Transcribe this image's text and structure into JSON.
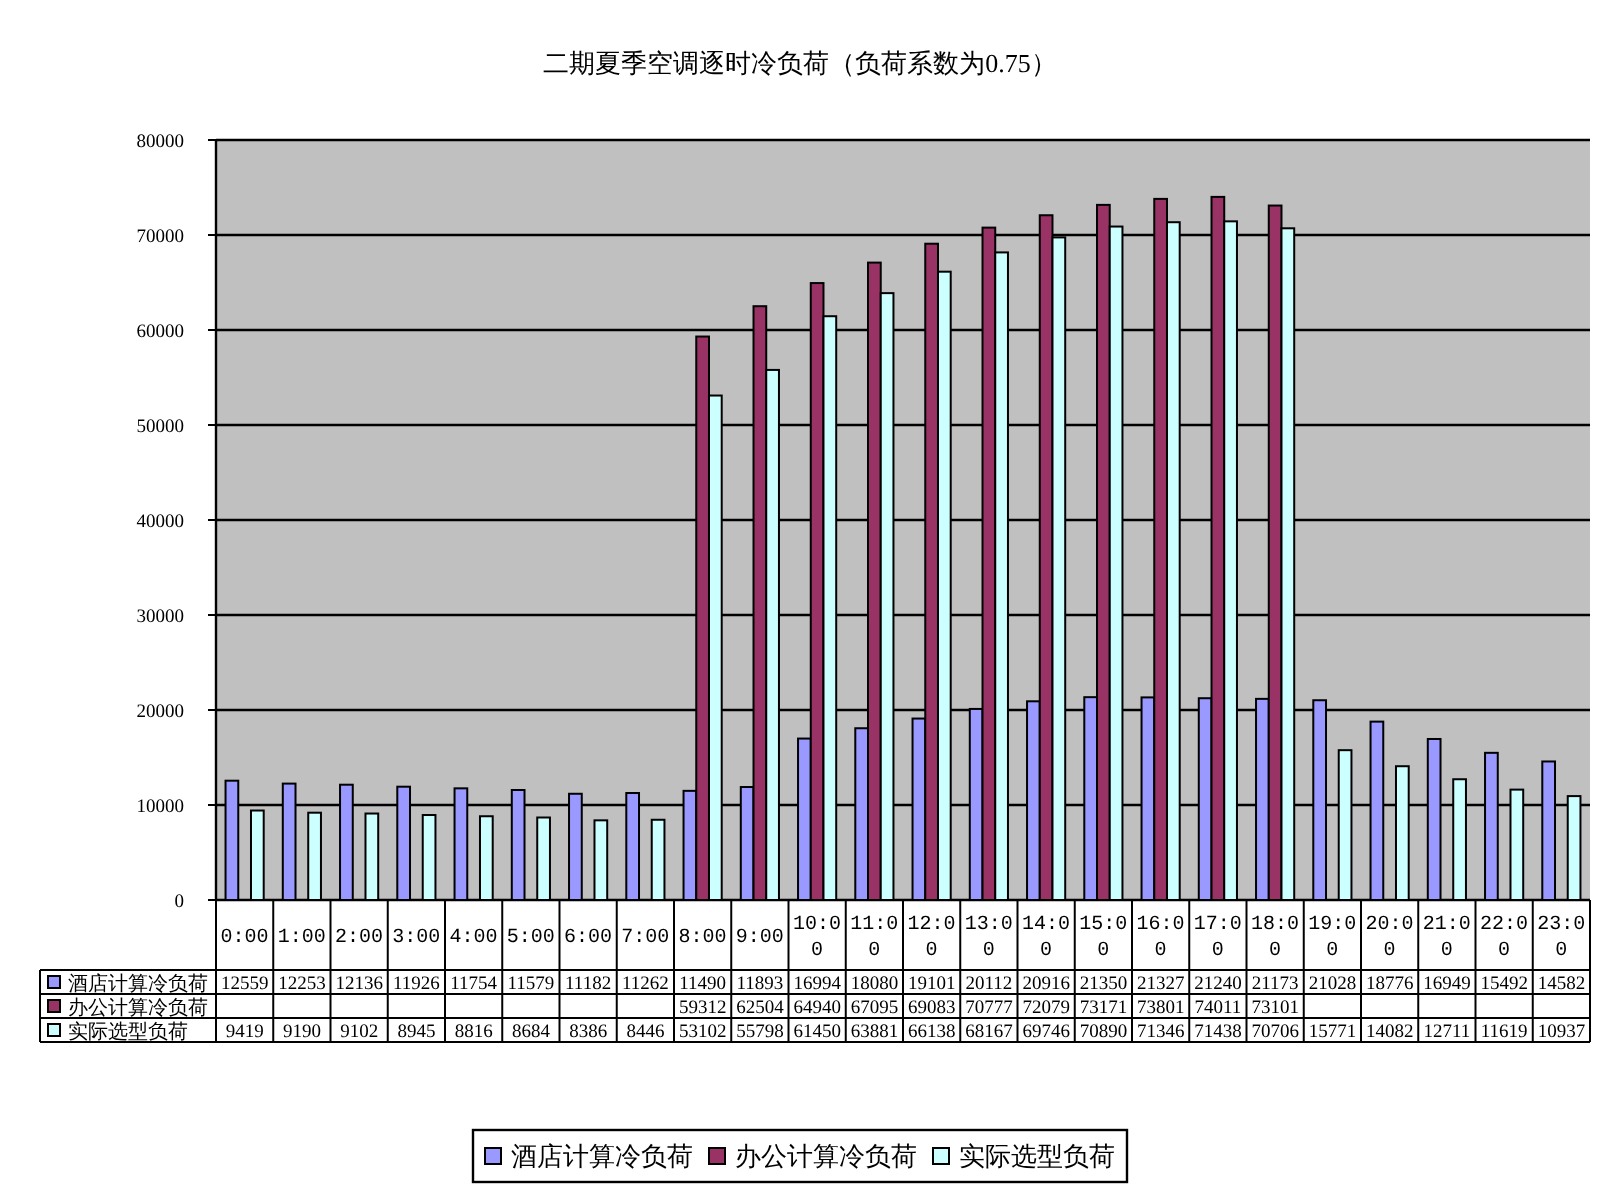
{
  "chart_data": {
    "type": "bar",
    "title": "二期夏季空调逐时冷负荷（负荷系数为0.75）",
    "categories": [
      "0:00",
      "1:00",
      "2:00",
      "3:00",
      "4:00",
      "5:00",
      "6:00",
      "7:00",
      "8:00",
      "9:00",
      "10:00",
      "11:00",
      "12:00",
      "13:00",
      "14:00",
      "15:00",
      "16:00",
      "17:00",
      "18:00",
      "19:00",
      "20:00",
      "21:00",
      "22:00",
      "23:00"
    ],
    "series": [
      {
        "name": "酒店计算冷负荷",
        "color": "#9999ff",
        "values": [
          12559,
          12253,
          12136,
          11926,
          11754,
          11579,
          11182,
          11262,
          11490,
          11893,
          16994,
          18080,
          19101,
          20112,
          20916,
          21350,
          21327,
          21240,
          21173,
          21028,
          18776,
          16949,
          15492,
          14582
        ]
      },
      {
        "name": "办公计算冷负荷",
        "color": "#993366",
        "values": [
          null,
          null,
          null,
          null,
          null,
          null,
          null,
          null,
          59312,
          62504,
          64940,
          67095,
          69083,
          70777,
          72079,
          73171,
          73801,
          74011,
          73101,
          null,
          null,
          null,
          null,
          null
        ]
      },
      {
        "name": "实际选型负荷",
        "color": "#ccffff",
        "values": [
          9419,
          9190,
          9102,
          8945,
          8816,
          8684,
          8386,
          8446,
          53102,
          55798,
          61450,
          63881,
          66138,
          68167,
          69746,
          70890,
          71346,
          71438,
          70706,
          15771,
          14082,
          12711,
          11619,
          10937
        ]
      }
    ],
    "ylim": [
      0,
      80000
    ],
    "yticks": [
      0,
      10000,
      20000,
      30000,
      40000,
      50000,
      60000,
      70000,
      80000
    ],
    "grid": "y",
    "legend": "bottom",
    "data_labels": true
  }
}
